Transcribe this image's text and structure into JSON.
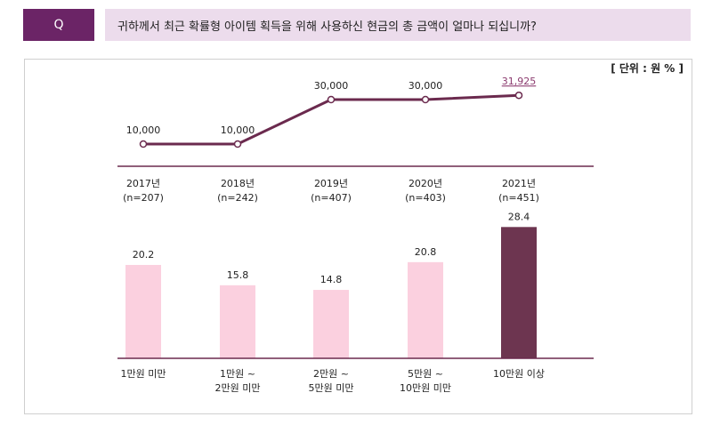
{
  "question": {
    "badge": "Q",
    "text": "귀하께서 최근 확률형 아이템 획득을 위해 사용하신 현금의 총 금액이 얼마나 되십니까?"
  },
  "unit_label": "[ 단위 : 원  % ]",
  "colors": {
    "badge": "#6b2466",
    "question_bg": "#ecdcec",
    "line": "#6b2a4e",
    "bar": "#fbd0df",
    "bar_highlight": "#6d3550",
    "highlight_text": "#8b3a6e"
  },
  "chart_data": [
    {
      "type": "line",
      "categories": [
        "2017년",
        "2018년",
        "2019년",
        "2020년",
        "2021년"
      ],
      "sample_sizes": [
        "(n=207)",
        "(n=242)",
        "(n=407)",
        "(n=403)",
        "(n=451)"
      ],
      "values": [
        10000,
        10000,
        30000,
        30000,
        31925
      ],
      "data_labels": [
        "10,000",
        "10,000",
        "30,000",
        "30,000",
        "31,925"
      ],
      "highlight_index": 4,
      "ylim": [
        0,
        40000
      ],
      "grid": false
    },
    {
      "type": "bar",
      "categories": [
        [
          "1만원 미만"
        ],
        [
          "1만원 ~",
          "2만원 미만"
        ],
        [
          "2만원 ~",
          "5만원 미만"
        ],
        [
          "5만원 ~",
          "10만원 미만"
        ],
        [
          "10만원 이상"
        ]
      ],
      "values": [
        20.2,
        15.8,
        14.8,
        20.8,
        28.4
      ],
      "data_labels": [
        "20.2",
        "15.8",
        "14.8",
        "20.8",
        "28.4"
      ],
      "highlight_index": 4,
      "ylim": [
        0,
        30
      ],
      "grid": false
    }
  ]
}
